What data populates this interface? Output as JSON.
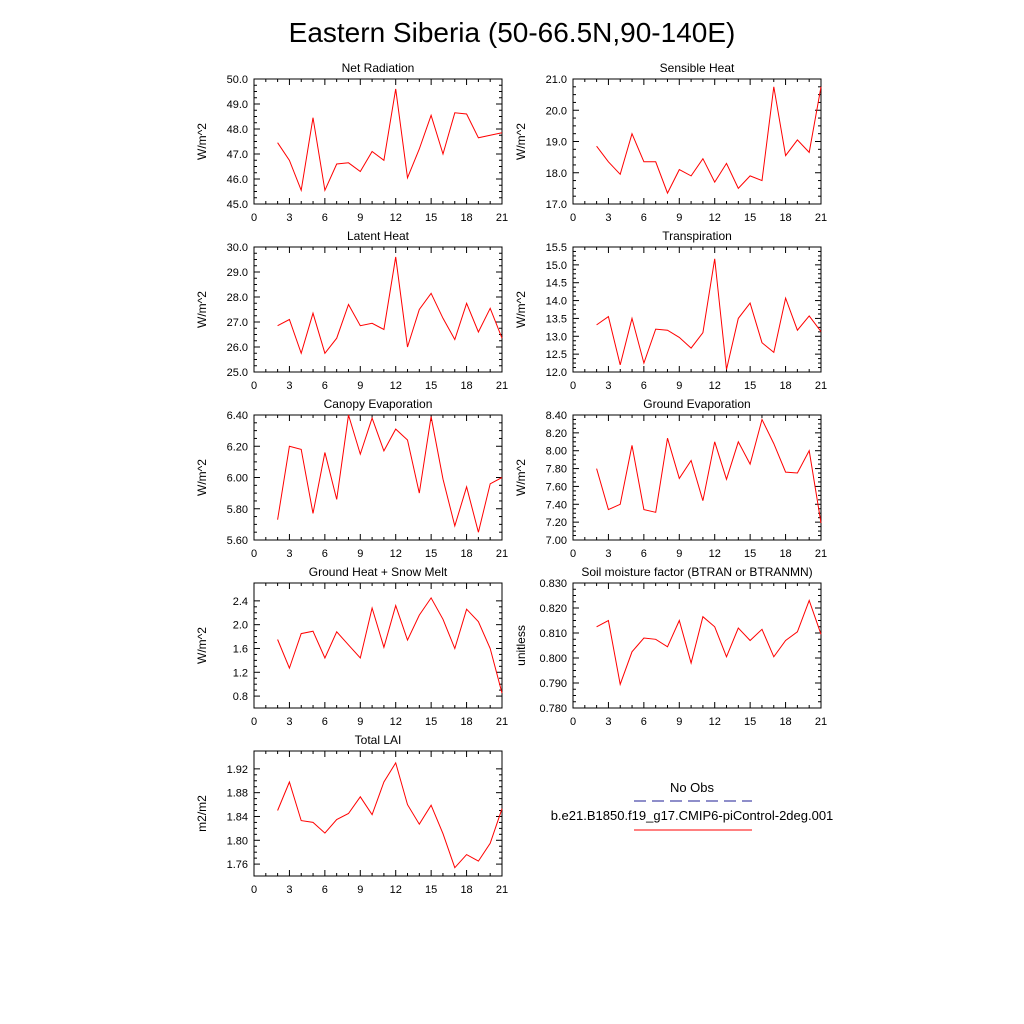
{
  "title": "Eastern Siberia (50-66.5N,90-140E)",
  "colors": {
    "model_line": "#ff0000",
    "obs_line": "#1e1e96",
    "axis": "#000000"
  },
  "legend": {
    "obs_label": "No Obs",
    "model_label": "b.e21.B1850.f19_g17.CMIP6-piControl-2deg.001"
  },
  "chart_data": [
    {
      "type": "line",
      "title": "Net Radiation",
      "ylabel": "W/m^2",
      "xlim": [
        0,
        21
      ],
      "ylim": [
        45.0,
        50.0
      ],
      "xticks": [
        0,
        3,
        6,
        9,
        12,
        15,
        18,
        21
      ],
      "yticks": [
        "45.0",
        "46.0",
        "47.0",
        "48.0",
        "49.0",
        "50.0"
      ],
      "x": [
        2,
        3,
        4,
        5,
        6,
        7,
        8,
        9,
        10,
        11,
        12,
        13,
        14,
        15,
        16,
        17,
        18,
        19,
        20,
        21
      ],
      "values": [
        47.45,
        46.75,
        45.55,
        48.45,
        45.55,
        46.6,
        46.65,
        46.3,
        47.1,
        46.75,
        49.6,
        46.05,
        47.2,
        48.55,
        47.0,
        48.65,
        48.6,
        47.65,
        47.75,
        47.85
      ]
    },
    {
      "type": "line",
      "title": "Sensible Heat",
      "ylabel": "W/m^2",
      "xlim": [
        0,
        21
      ],
      "ylim": [
        17.0,
        21.0
      ],
      "xticks": [
        0,
        3,
        6,
        9,
        12,
        15,
        18,
        21
      ],
      "yticks": [
        "17.0",
        "18.0",
        "19.0",
        "20.0",
        "21.0"
      ],
      "x": [
        2,
        3,
        4,
        5,
        6,
        7,
        8,
        9,
        10,
        11,
        12,
        13,
        14,
        15,
        16,
        17,
        18,
        19,
        20,
        21
      ],
      "values": [
        18.85,
        18.35,
        17.95,
        19.25,
        18.35,
        18.35,
        17.35,
        18.1,
        17.9,
        18.45,
        17.7,
        18.3,
        17.5,
        17.9,
        17.75,
        20.75,
        18.55,
        19.05,
        18.65,
        20.75
      ]
    },
    {
      "type": "line",
      "title": "Latent Heat",
      "ylabel": "W/m^2",
      "xlim": [
        0,
        21
      ],
      "ylim": [
        25.0,
        30.0
      ],
      "xticks": [
        0,
        3,
        6,
        9,
        12,
        15,
        18,
        21
      ],
      "yticks": [
        "25.0",
        "26.0",
        "27.0",
        "28.0",
        "29.0",
        "30.0"
      ],
      "x": [
        2,
        3,
        4,
        5,
        6,
        7,
        8,
        9,
        10,
        11,
        12,
        13,
        14,
        15,
        16,
        17,
        18,
        19,
        20,
        21
      ],
      "values": [
        26.85,
        27.1,
        25.75,
        27.35,
        25.75,
        26.35,
        27.7,
        26.85,
        26.95,
        26.7,
        29.6,
        26.0,
        27.5,
        28.15,
        27.15,
        26.3,
        27.75,
        26.6,
        27.55,
        26.35
      ]
    },
    {
      "type": "line",
      "title": "Transpiration",
      "ylabel": "W/m^2",
      "xlim": [
        0,
        21
      ],
      "ylim": [
        12.0,
        15.5
      ],
      "xticks": [
        0,
        3,
        6,
        9,
        12,
        15,
        18,
        21
      ],
      "yticks": [
        "12.0",
        "12.5",
        "13.0",
        "13.5",
        "14.0",
        "14.5",
        "15.0",
        "15.5"
      ],
      "x": [
        2,
        3,
        4,
        5,
        6,
        7,
        8,
        9,
        10,
        11,
        12,
        13,
        14,
        15,
        16,
        17,
        18,
        19,
        20,
        21
      ],
      "values": [
        13.32,
        13.55,
        12.2,
        13.5,
        12.25,
        13.2,
        13.17,
        12.97,
        12.67,
        13.1,
        15.17,
        12.07,
        13.5,
        13.93,
        12.82,
        12.55,
        14.07,
        13.17,
        13.57,
        13.13
      ]
    },
    {
      "type": "line",
      "title": "Canopy Evaporation",
      "ylabel": "W/m^2",
      "xlim": [
        0,
        21
      ],
      "ylim": [
        5.6,
        6.4
      ],
      "xticks": [
        0,
        3,
        6,
        9,
        12,
        15,
        18,
        21
      ],
      "yticks": [
        "5.60",
        "5.80",
        "6.00",
        "6.20",
        "6.40"
      ],
      "x": [
        2,
        3,
        4,
        5,
        6,
        7,
        8,
        9,
        10,
        11,
        12,
        13,
        14,
        15,
        16,
        17,
        18,
        19,
        20,
        21
      ],
      "values": [
        5.73,
        6.2,
        6.18,
        5.77,
        6.16,
        5.86,
        6.4,
        6.15,
        6.38,
        6.17,
        6.31,
        6.24,
        5.9,
        6.39,
        5.99,
        5.69,
        5.94,
        5.65,
        5.96,
        6.0
      ]
    },
    {
      "type": "line",
      "title": "Ground Evaporation",
      "ylabel": "W/m^2",
      "xlim": [
        0,
        21
      ],
      "ylim": [
        7.0,
        8.4
      ],
      "xticks": [
        0,
        3,
        6,
        9,
        12,
        15,
        18,
        21
      ],
      "yticks": [
        "7.00",
        "7.20",
        "7.40",
        "7.60",
        "7.80",
        "8.00",
        "8.20",
        "8.40"
      ],
      "x": [
        2,
        3,
        4,
        5,
        6,
        7,
        8,
        9,
        10,
        11,
        12,
        13,
        14,
        15,
        16,
        17,
        18,
        19,
        20,
        21
      ],
      "values": [
        7.8,
        7.34,
        7.4,
        8.06,
        7.34,
        7.31,
        8.14,
        7.69,
        7.89,
        7.44,
        8.1,
        7.68,
        8.1,
        7.85,
        8.35,
        8.08,
        7.76,
        7.75,
        8.0,
        7.19
      ]
    },
    {
      "type": "line",
      "title": "Ground Heat + Snow Melt",
      "ylabel": "W/m^2",
      "xlim": [
        0,
        21
      ],
      "ylim": [
        0.6,
        2.7
      ],
      "xticks": [
        0,
        3,
        6,
        9,
        12,
        15,
        18,
        21
      ],
      "yticks": [
        "0.8",
        "1.2",
        "1.6",
        "2.0",
        "2.4"
      ],
      "x": [
        2,
        3,
        4,
        5,
        6,
        7,
        8,
        9,
        10,
        11,
        12,
        13,
        14,
        15,
        16,
        17,
        18,
        19,
        20,
        21
      ],
      "values": [
        1.75,
        1.27,
        1.85,
        1.89,
        1.44,
        1.88,
        1.66,
        1.44,
        2.28,
        1.62,
        2.32,
        1.74,
        2.16,
        2.45,
        2.09,
        1.6,
        2.26,
        2.05,
        1.6,
        0.85
      ]
    },
    {
      "type": "line",
      "title": "Soil moisture factor (BTRAN or BTRANMN)",
      "ylabel": "unitless",
      "xlim": [
        0,
        21
      ],
      "ylim": [
        0.78,
        0.83
      ],
      "xticks": [
        0,
        3,
        6,
        9,
        12,
        15,
        18,
        21
      ],
      "yticks": [
        "0.780",
        "0.790",
        "0.800",
        "0.810",
        "0.820",
        "0.830"
      ],
      "x": [
        2,
        3,
        4,
        5,
        6,
        7,
        8,
        9,
        10,
        11,
        12,
        13,
        14,
        15,
        16,
        17,
        18,
        19,
        20,
        21
      ],
      "values": [
        0.8125,
        0.815,
        0.7895,
        0.8025,
        0.808,
        0.8075,
        0.8045,
        0.815,
        0.798,
        0.8165,
        0.8125,
        0.8005,
        0.812,
        0.807,
        0.8115,
        0.8005,
        0.807,
        0.8105,
        0.823,
        0.8095
      ]
    },
    {
      "type": "line",
      "title": "Total LAI",
      "ylabel": "m2/m2",
      "xlim": [
        0,
        21
      ],
      "ylim": [
        1.74,
        1.95
      ],
      "xticks": [
        0,
        3,
        6,
        9,
        12,
        15,
        18,
        21
      ],
      "yticks": [
        "1.76",
        "1.80",
        "1.84",
        "1.88",
        "1.92"
      ],
      "x": [
        2,
        3,
        4,
        5,
        6,
        7,
        8,
        9,
        10,
        11,
        12,
        13,
        14,
        15,
        16,
        17,
        18,
        19,
        20,
        21
      ],
      "values": [
        1.85,
        1.898,
        1.833,
        1.83,
        1.812,
        1.835,
        1.845,
        1.873,
        1.843,
        1.898,
        1.93,
        1.86,
        1.827,
        1.859,
        1.811,
        1.754,
        1.776,
        1.765,
        1.795,
        1.853
      ]
    }
  ]
}
